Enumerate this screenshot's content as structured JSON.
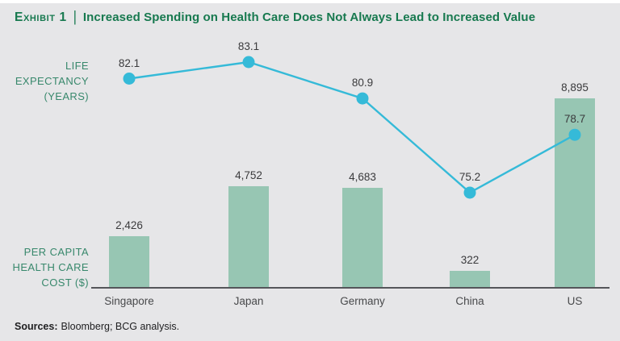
{
  "title": {
    "exhibit_label": "Exhibit 1",
    "separator": "|",
    "text": "Increased Spending on Health Care Does Not Always Lead to Increased Value"
  },
  "axis_labels": {
    "line_axis": [
      "LIFE",
      "EXPECTANCY",
      "(YEARS)"
    ],
    "bar_axis": [
      "PER CAPITA",
      "HEALTH CARE",
      "COST ($)"
    ]
  },
  "footer": {
    "sources_label": "Sources:",
    "sources_text": "Bloomberg; BCG analysis."
  },
  "colors": {
    "background": "#e6e6e8",
    "title_green": "#17794f",
    "axis_label_green": "#38886c",
    "bar_fill": "#97c6b3",
    "line_cyan": "#35bad8",
    "axis_line": "#55565a"
  },
  "chart_data": {
    "type": "bar",
    "subtype": "combo-bar-line",
    "title": "Increased Spending on Health Care Does Not Always Lead to Increased Value",
    "categories": [
      "Singapore",
      "Japan",
      "Germany",
      "China",
      "US"
    ],
    "series": [
      {
        "name": "Per capita health care cost ($)",
        "type": "bar",
        "values": [
          2426,
          4752,
          4683,
          322,
          8895
        ],
        "labels": [
          "2,426",
          "4,752",
          "4,683",
          "322",
          "8,895"
        ]
      },
      {
        "name": "Life expectancy (years)",
        "type": "line",
        "values": [
          82.1,
          83.1,
          80.9,
          75.2,
          78.7
        ],
        "labels": [
          "82.1",
          "83.1",
          "80.9",
          "75.2",
          "78.7"
        ]
      }
    ],
    "xlabel": "",
    "ylabel_bar": "Per capita health care cost ($)",
    "ylabel_line": "Life expectancy (years)",
    "ylim_bar": [
      0,
      9000
    ],
    "ylim_line": [
      74,
      84
    ],
    "grid": false,
    "legend": "none",
    "value_labels_shown": true
  }
}
